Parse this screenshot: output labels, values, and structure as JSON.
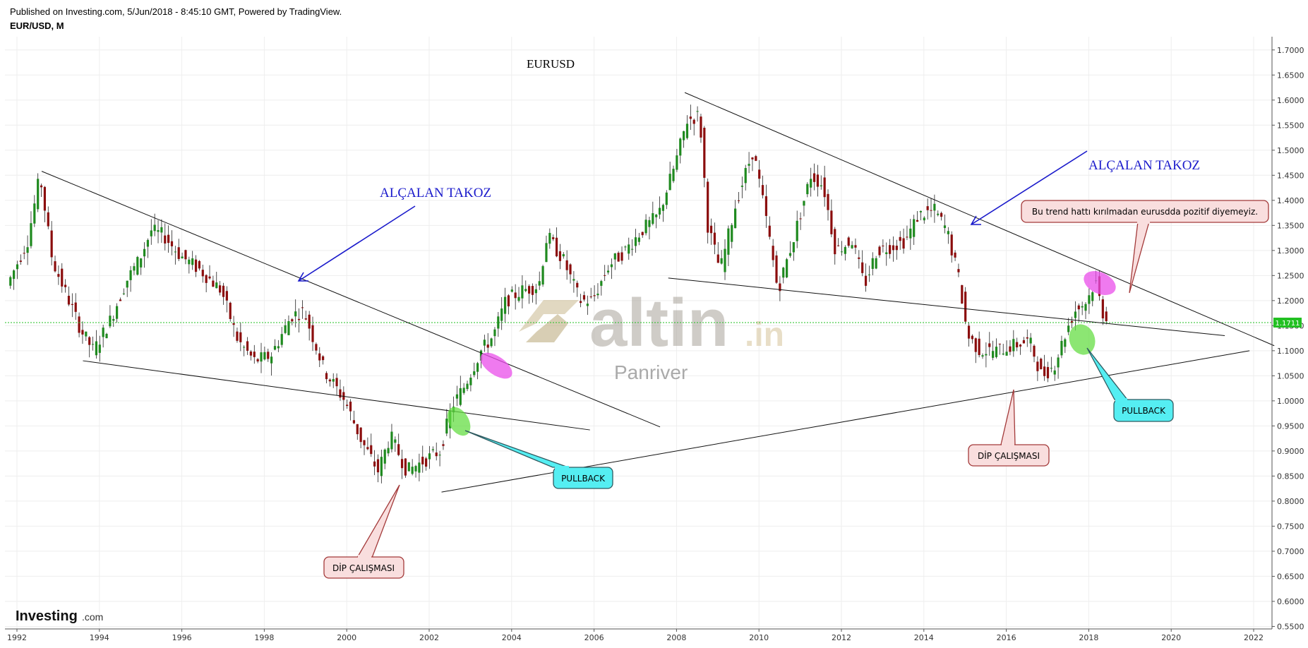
{
  "header": {
    "published": "Published on Investing.com, 5/Jun/2018 - 8:45:10 GMT, Powered by TradingView.",
    "symbol": "EUR/USD, M"
  },
  "colors": {
    "up": "#1f8a1f",
    "down": "#8b0d0d",
    "price_line": "#22c022",
    "annot_blue": "#1a1acb",
    "pink_ellipse": "#e94de9",
    "green_ellipse": "#66dd44",
    "callout_pink_fill": "#f9dede",
    "callout_pink_stroke": "#a33a3a",
    "callout_cyan_fill": "#55eef2",
    "callout_cyan_stroke": "#2f5a60"
  },
  "chart_data": {
    "type": "candlestick",
    "title": "EURUSD",
    "timeframe": "M",
    "x_ticks": [
      "1992",
      "1994",
      "1996",
      "1998",
      "2000",
      "2002",
      "2004",
      "2006",
      "2008",
      "2010",
      "2012",
      "2014",
      "2016",
      "2018",
      "2020",
      "2022"
    ],
    "y_ticks": [
      "0.5500",
      "0.6000",
      "0.6500",
      "0.7000",
      "0.7500",
      "0.8000",
      "0.8500",
      "0.9000",
      "0.9500",
      "1.0000",
      "1.0500",
      "1.1000",
      "1.1500",
      "1.2000",
      "1.2500",
      "1.3000",
      "1.3500",
      "1.4000",
      "1.4500",
      "1.5000",
      "1.5500",
      "1.6000",
      "1.6500",
      "1.7000"
    ],
    "xlim": [
      1991.75,
      2022.2
    ],
    "ylim": [
      0.545,
      1.725
    ],
    "last_price": "1.1711",
    "last_value": 1.1711,
    "approx_path": [
      [
        1991.8,
        1.23
      ],
      [
        1992.3,
        1.32
      ],
      [
        1992.6,
        1.45
      ],
      [
        1992.9,
        1.28
      ],
      [
        1993.2,
        1.22
      ],
      [
        1993.6,
        1.14
      ],
      [
        1993.9,
        1.1
      ],
      [
        1994.3,
        1.16
      ],
      [
        1994.7,
        1.24
      ],
      [
        1995.0,
        1.28
      ],
      [
        1995.3,
        1.34
      ],
      [
        1995.6,
        1.33
      ],
      [
        1996.0,
        1.29
      ],
      [
        1996.5,
        1.26
      ],
      [
        1997.0,
        1.22
      ],
      [
        1997.4,
        1.12
      ],
      [
        1997.8,
        1.08
      ],
      [
        1998.2,
        1.09
      ],
      [
        1998.7,
        1.17
      ],
      [
        1999.0,
        1.18
      ],
      [
        1999.5,
        1.06
      ],
      [
        2000.0,
        1.0
      ],
      [
        2000.4,
        0.92
      ],
      [
        2000.8,
        0.86
      ],
      [
        2001.1,
        0.93
      ],
      [
        2001.5,
        0.86
      ],
      [
        2001.9,
        0.88
      ],
      [
        2002.3,
        0.9
      ],
      [
        2002.6,
        0.99
      ],
      [
        2002.9,
        1.03
      ],
      [
        2003.3,
        1.1
      ],
      [
        2003.6,
        1.13
      ],
      [
        2003.9,
        1.2
      ],
      [
        2004.3,
        1.22
      ],
      [
        2004.7,
        1.23
      ],
      [
        2004.9,
        1.33
      ],
      [
        2005.3,
        1.28
      ],
      [
        2005.7,
        1.2
      ],
      [
        2006.0,
        1.2
      ],
      [
        2006.4,
        1.27
      ],
      [
        2006.8,
        1.3
      ],
      [
        2007.2,
        1.34
      ],
      [
        2007.6,
        1.37
      ],
      [
        2008.0,
        1.47
      ],
      [
        2008.3,
        1.56
      ],
      [
        2008.6,
        1.57
      ],
      [
        2008.8,
        1.35
      ],
      [
        2009.1,
        1.26
      ],
      [
        2009.5,
        1.4
      ],
      [
        2009.9,
        1.5
      ],
      [
        2010.2,
        1.37
      ],
      [
        2010.5,
        1.22
      ],
      [
        2010.9,
        1.33
      ],
      [
        2011.3,
        1.45
      ],
      [
        2011.6,
        1.43
      ],
      [
        2011.9,
        1.3
      ],
      [
        2012.3,
        1.32
      ],
      [
        2012.6,
        1.23
      ],
      [
        2012.9,
        1.3
      ],
      [
        2013.3,
        1.31
      ],
      [
        2013.6,
        1.32
      ],
      [
        2013.9,
        1.37
      ],
      [
        2014.3,
        1.38
      ],
      [
        2014.6,
        1.34
      ],
      [
        2014.9,
        1.24
      ],
      [
        2015.1,
        1.13
      ],
      [
        2015.4,
        1.1
      ],
      [
        2015.8,
        1.1
      ],
      [
        2016.2,
        1.11
      ],
      [
        2016.6,
        1.12
      ],
      [
        2016.9,
        1.05
      ],
      [
        2017.2,
        1.07
      ],
      [
        2017.5,
        1.14
      ],
      [
        2017.7,
        1.18
      ],
      [
        2018.0,
        1.2
      ],
      [
        2018.2,
        1.24
      ],
      [
        2018.4,
        1.17
      ]
    ],
    "trendlines": [
      {
        "from": [
          1992.6,
          1.458
        ],
        "to": [
          2007.6,
          0.948
        ]
      },
      {
        "from": [
          1993.6,
          1.08
        ],
        "to": [
          2005.9,
          0.942
        ]
      },
      {
        "from": [
          2002.3,
          0.818
        ],
        "to": [
          2021.9,
          1.1
        ]
      },
      {
        "from": [
          2008.2,
          1.615
        ],
        "to": [
          2022.5,
          1.11
        ]
      },
      {
        "from": [
          2007.8,
          1.245
        ],
        "to": [
          2021.3,
          1.13
        ]
      }
    ],
    "annotations": {
      "wedge_label_1": "ALÇALAN TAKOZ",
      "wedge_label_2": "ALÇALAN TAKOZ",
      "callout_trend": "Bu trend hattı kırılmadan eurusdda pozitif diyemeyiz.",
      "pullback_1": "PULLBACK",
      "pullback_2": "PULLBACK",
      "dip_1": "DİP ÇALIŞMASI",
      "dip_2": "DİP ÇALIŞMASI"
    },
    "watermark": {
      "main": "altin",
      "suffix": ".in",
      "sub": "Panriver"
    },
    "brand": {
      "name": "Investing",
      "suffix": ".com"
    }
  }
}
